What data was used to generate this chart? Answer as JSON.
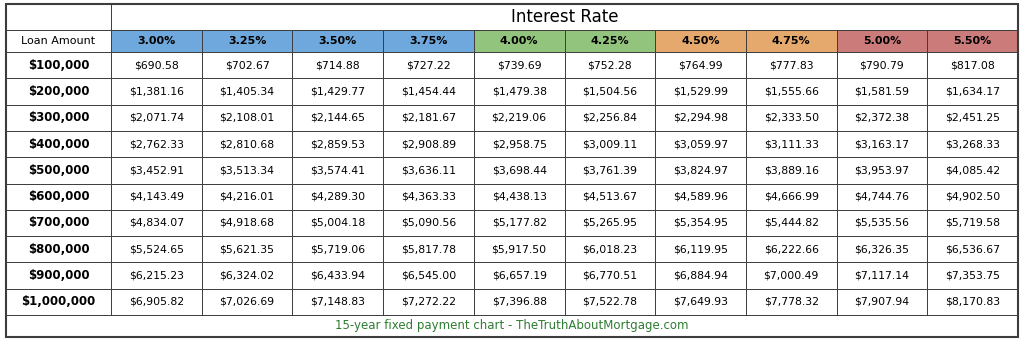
{
  "title": "Interest Rate",
  "footer": "15-year fixed payment chart - TheTruthAboutMortgage.com",
  "footer_color": "#2e7d32",
  "col_header_label": "Loan Amount",
  "col_headers": [
    "3.00%",
    "3.25%",
    "3.50%",
    "3.75%",
    "4.00%",
    "4.25%",
    "4.50%",
    "4.75%",
    "5.00%",
    "5.50%"
  ],
  "col_header_colors": [
    "#6fa8dc",
    "#6fa8dc",
    "#6fa8dc",
    "#6fa8dc",
    "#93c47d",
    "#93c47d",
    "#e6a96d",
    "#e6a96d",
    "#cc7b7b",
    "#cc7b7b"
  ],
  "row_labels": [
    "$100,000",
    "$200,000",
    "$300,000",
    "$400,000",
    "$500,000",
    "$600,000",
    "$700,000",
    "$800,000",
    "$900,000",
    "$1,000,000"
  ],
  "data": [
    [
      "$690.58",
      "$702.67",
      "$714.88",
      "$727.22",
      "$739.69",
      "$752.28",
      "$764.99",
      "$777.83",
      "$790.79",
      "$817.08"
    ],
    [
      "$1,381.16",
      "$1,405.34",
      "$1,429.77",
      "$1,454.44",
      "$1,479.38",
      "$1,504.56",
      "$1,529.99",
      "$1,555.66",
      "$1,581.59",
      "$1,634.17"
    ],
    [
      "$2,071.74",
      "$2,108.01",
      "$2,144.65",
      "$2,181.67",
      "$2,219.06",
      "$2,256.84",
      "$2,294.98",
      "$2,333.50",
      "$2,372.38",
      "$2,451.25"
    ],
    [
      "$2,762.33",
      "$2,810.68",
      "$2,859.53",
      "$2,908.89",
      "$2,958.75",
      "$3,009.11",
      "$3,059.97",
      "$3,111.33",
      "$3,163.17",
      "$3,268.33"
    ],
    [
      "$3,452.91",
      "$3,513.34",
      "$3,574.41",
      "$3,636.11",
      "$3,698.44",
      "$3,761.39",
      "$3,824.97",
      "$3,889.16",
      "$3,953.97",
      "$4,085.42"
    ],
    [
      "$4,143.49",
      "$4,216.01",
      "$4,289.30",
      "$4,363.33",
      "$4,438.13",
      "$4,513.67",
      "$4,589.96",
      "$4,666.99",
      "$4,744.76",
      "$4,902.50"
    ],
    [
      "$4,834.07",
      "$4,918.68",
      "$5,004.18",
      "$5,090.56",
      "$5,177.82",
      "$5,265.95",
      "$5,354.95",
      "$5,444.82",
      "$5,535.56",
      "$5,719.58"
    ],
    [
      "$5,524.65",
      "$5,621.35",
      "$5,719.06",
      "$5,817.78",
      "$5,917.50",
      "$6,018.23",
      "$6,119.95",
      "$6,222.66",
      "$6,326.35",
      "$6,536.67"
    ],
    [
      "$6,215.23",
      "$6,324.02",
      "$6,433.94",
      "$6,545.00",
      "$6,657.19",
      "$6,770.51",
      "$6,884.94",
      "$7,000.49",
      "$7,117.14",
      "$7,353.75"
    ],
    [
      "$6,905.82",
      "$7,026.69",
      "$7,148.83",
      "$7,272.22",
      "$7,396.88",
      "$7,522.78",
      "$7,649.93",
      "$7,778.32",
      "$7,907.94",
      "$8,170.83"
    ]
  ],
  "bg_color": "#ffffff",
  "border_color": "#3d3d3d",
  "title_fontsize": 12,
  "header_fontsize": 8,
  "row_label_fontsize": 8.5,
  "data_fontsize": 7.8,
  "footer_fontsize": 8.5
}
